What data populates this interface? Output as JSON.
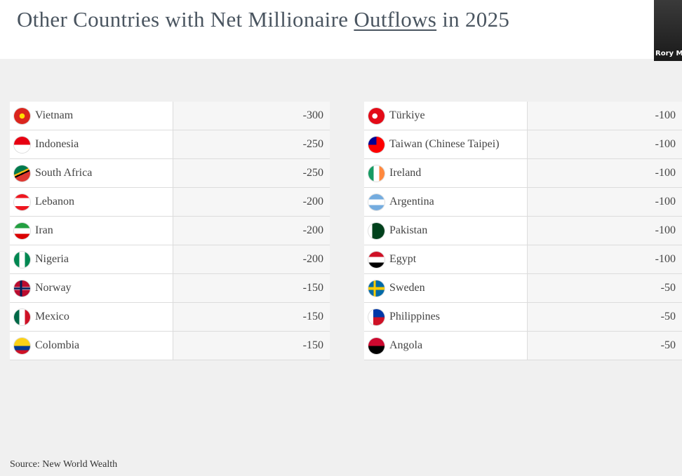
{
  "title": {
    "before": "Other Countries with Net Millionaire",
    "underlined": "Outflows",
    "after": "in 2025"
  },
  "video": {
    "label": "Rory Mc"
  },
  "tables": [
    {
      "rows": [
        [
          "Vietnam",
          -300
        ],
        [
          "Indonesia",
          -250
        ],
        [
          "South Africa",
          -250
        ],
        [
          "Lebanon",
          -200
        ],
        [
          "Iran",
          -200
        ],
        [
          "Nigeria",
          -200
        ],
        [
          "Norway",
          -150
        ],
        [
          "Mexico",
          -150
        ],
        [
          "Colombia",
          -150
        ]
      ]
    },
    {
      "rows": [
        [
          "Türkiye",
          -100
        ],
        [
          "Taiwan (Chinese Taipei)",
          -100
        ],
        [
          "Ireland",
          -100
        ],
        [
          "Argentina",
          -100
        ],
        [
          "Pakistan",
          -100
        ],
        [
          "Egypt",
          -100
        ],
        [
          "Sweden",
          -50
        ],
        [
          "Philippines",
          -50
        ],
        [
          "Angola",
          -50
        ]
      ]
    }
  ],
  "source": "Source: New World Wealth"
}
